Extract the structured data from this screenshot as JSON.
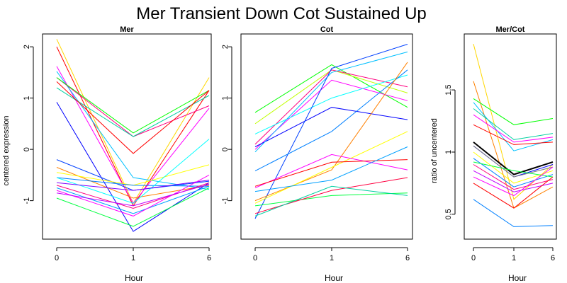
{
  "title": "Mer Transient Down Cot Sustained Up",
  "chart_data": [
    {
      "type": "line",
      "title": "Mer",
      "xlabel": "Hour",
      "ylabel": "centered expression",
      "x_ticks": [
        "0",
        "1",
        "6"
      ],
      "y_ticks": [
        -1,
        0,
        1,
        2
      ],
      "ylim": [
        -1.75,
        2.25
      ],
      "series": [
        {
          "color": "#ffd700",
          "values": [
            2.15,
            -1.05,
            1.4
          ]
        },
        {
          "color": "#ff0000",
          "values": [
            2.0,
            -1.1,
            1.15
          ]
        },
        {
          "color": "#ff00ff",
          "values": [
            1.62,
            -1.05,
            0.8
          ]
        },
        {
          "color": "#00c0ff",
          "values": [
            1.52,
            -0.55,
            -0.78
          ]
        },
        {
          "color": "#ff0080",
          "values": [
            1.4,
            0.25,
            0.85
          ]
        },
        {
          "color": "#00ff00",
          "values": [
            1.4,
            0.32,
            1.15
          ]
        },
        {
          "color": "#00d0a0",
          "values": [
            1.2,
            0.25,
            1.05
          ]
        },
        {
          "color": "#ff0000",
          "values": [
            1.32,
            -0.08,
            1.15
          ]
        },
        {
          "color": "#0000ff",
          "values": [
            0.92,
            -1.6,
            -0.65
          ]
        },
        {
          "color": "#0040ff",
          "values": [
            -0.2,
            -0.8,
            -0.62
          ]
        },
        {
          "color": "#ff8000",
          "values": [
            -0.35,
            -0.95,
            -0.7
          ]
        },
        {
          "color": "#ffff00",
          "values": [
            -0.45,
            -0.7,
            -0.3
          ]
        },
        {
          "color": "#0080ff",
          "values": [
            -0.55,
            -0.7,
            -0.72
          ]
        },
        {
          "color": "#00ffff",
          "values": [
            -0.55,
            -1.05,
            0.2
          ]
        },
        {
          "color": "#8000ff",
          "values": [
            -0.65,
            -0.8,
            -0.6
          ]
        },
        {
          "color": "#ff0080",
          "values": [
            -0.7,
            -1.15,
            -0.65
          ]
        },
        {
          "color": "#00a0ff",
          "values": [
            -0.75,
            -1.25,
            -0.72
          ]
        },
        {
          "color": "#ff00ff",
          "values": [
            -0.8,
            -1.3,
            -0.5
          ]
        },
        {
          "color": "#c000ff",
          "values": [
            -0.85,
            -1.1,
            -0.68
          ]
        },
        {
          "color": "#00ff40",
          "values": [
            -0.95,
            -1.5,
            -0.75
          ]
        }
      ]
    },
    {
      "type": "line",
      "title": "Cot",
      "xlabel": "Hour",
      "ylabel": "",
      "x_ticks": [
        "0",
        "1",
        "6"
      ],
      "y_ticks": [
        -1,
        0,
        1,
        2
      ],
      "ylim": [
        -1.75,
        2.25
      ],
      "series": [
        {
          "color": "#00ff00",
          "values": [
            0.72,
            1.65,
            0.82
          ]
        },
        {
          "color": "#c0ff00",
          "values": [
            0.5,
            1.55,
            1.1
          ]
        },
        {
          "color": "#ff0080",
          "values": [
            0.1,
            1.55,
            1.22
          ]
        },
        {
          "color": "#ff00ff",
          "values": [
            0.0,
            1.35,
            0.95
          ]
        },
        {
          "color": "#0000ff",
          "values": [
            0.05,
            0.82,
            0.58
          ]
        },
        {
          "color": "#00ffff",
          "values": [
            0.3,
            1.0,
            1.45
          ]
        },
        {
          "color": "#00c0ff",
          "values": [
            -0.05,
            1.5,
            1.9
          ]
        },
        {
          "color": "#0040ff",
          "values": [
            -1.35,
            1.58,
            2.05
          ]
        },
        {
          "color": "#0080ff",
          "values": [
            -0.42,
            0.35,
            1.55
          ]
        },
        {
          "color": "#ff8000",
          "values": [
            -1.0,
            -0.4,
            1.7
          ]
        },
        {
          "color": "#ffff00",
          "values": [
            -1.05,
            -0.35,
            0.35
          ]
        },
        {
          "color": "#ff00ff",
          "values": [
            -0.75,
            -0.1,
            -0.4
          ]
        },
        {
          "color": "#ff0000",
          "values": [
            -0.72,
            -0.25,
            -0.2
          ]
        },
        {
          "color": "#00a0ff",
          "values": [
            -0.82,
            -0.6,
            0.05
          ]
        },
        {
          "color": "#00ff40",
          "values": [
            -1.1,
            -0.9,
            -0.85
          ]
        },
        {
          "color": "#ff0040",
          "values": [
            -1.25,
            -0.8,
            -0.55
          ]
        },
        {
          "color": "#00d0a0",
          "values": [
            -1.3,
            -0.72,
            -0.9
          ]
        }
      ]
    },
    {
      "type": "line",
      "title": "Mer/Cot",
      "xlabel": "Hour",
      "ylabel": "ratio of uncentered",
      "x_ticks": [
        "0",
        "1",
        "6"
      ],
      "y_ticks": [
        0.5,
        1.0,
        1.5
      ],
      "ylim": [
        0.3,
        1.95
      ],
      "series": [
        {
          "color": "#ffd700",
          "values": [
            1.87,
            0.62,
            0.9
          ]
        },
        {
          "color": "#ff8000",
          "values": [
            1.57,
            0.55,
            0.72
          ]
        },
        {
          "color": "#00ff00",
          "values": [
            1.43,
            1.22,
            1.27
          ]
        },
        {
          "color": "#00c0ff",
          "values": [
            1.4,
            1.01,
            1.1
          ]
        },
        {
          "color": "#00d0a0",
          "values": [
            1.35,
            1.1,
            1.15
          ]
        },
        {
          "color": "#ff00ff",
          "values": [
            1.3,
            1.08,
            1.12
          ]
        },
        {
          "color": "#ff0000",
          "values": [
            1.22,
            1.06,
            1.08
          ]
        },
        {
          "color": "#0000ff",
          "values": [
            1.05,
            0.8,
            0.9
          ]
        },
        {
          "color": "#000000",
          "values": [
            1.08,
            0.82,
            0.92
          ]
        },
        {
          "color": "#808080",
          "values": [
            1.05,
            0.8,
            0.88
          ]
        },
        {
          "color": "#ffff00",
          "values": [
            1.0,
            0.75,
            0.85
          ]
        },
        {
          "color": "#0080ff",
          "values": [
            0.95,
            0.72,
            0.82
          ]
        },
        {
          "color": "#00ff40",
          "values": [
            0.92,
            0.85,
            0.8
          ]
        },
        {
          "color": "#ff0080",
          "values": [
            0.9,
            0.7,
            0.78
          ]
        },
        {
          "color": "#c000ff",
          "values": [
            0.85,
            0.68,
            0.75
          ]
        },
        {
          "color": "#ff00ff",
          "values": [
            0.8,
            0.65,
            0.88
          ]
        },
        {
          "color": "#ff0000",
          "values": [
            0.75,
            0.55,
            0.8
          ]
        },
        {
          "color": "#0080ff",
          "values": [
            0.62,
            0.4,
            0.41
          ]
        }
      ]
    }
  ]
}
